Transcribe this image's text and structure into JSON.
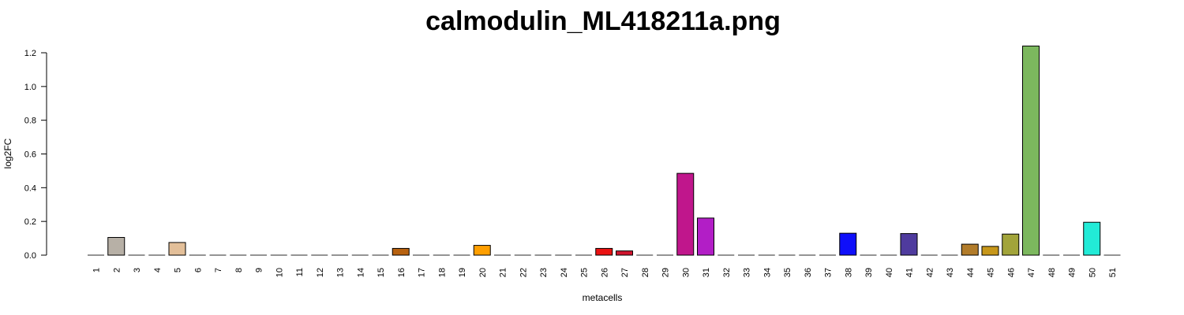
{
  "chart_data": {
    "type": "bar",
    "title": "calmodulin_ML418211a.png",
    "xlabel": "metacells",
    "ylabel": "log2FC",
    "ylim": [
      0,
      1.2
    ],
    "yticks": [
      "0.0",
      "0.2",
      "0.4",
      "0.6",
      "0.8",
      "1.0",
      "1.2"
    ],
    "grid": false,
    "legend": "none",
    "categories": [
      "1",
      "2",
      "3",
      "4",
      "5",
      "6",
      "7",
      "8",
      "9",
      "10",
      "11",
      "12",
      "13",
      "14",
      "15",
      "16",
      "17",
      "18",
      "19",
      "20",
      "21",
      "22",
      "23",
      "24",
      "25",
      "26",
      "27",
      "28",
      "29",
      "30",
      "31",
      "32",
      "33",
      "34",
      "35",
      "36",
      "37",
      "38",
      "39",
      "40",
      "41",
      "42",
      "43",
      "44",
      "45",
      "46",
      "47",
      "48",
      "49",
      "50",
      "51"
    ],
    "values": [
      0,
      0.105,
      0,
      0,
      0.075,
      0,
      0,
      0,
      0,
      0,
      0,
      0,
      0,
      0,
      0,
      0.04,
      0,
      0,
      0,
      0.058,
      0,
      0,
      0,
      0,
      0,
      0.04,
      0.025,
      0,
      0,
      0.485,
      0.22,
      0,
      0,
      0,
      0,
      0,
      0,
      0.13,
      0,
      0,
      0.128,
      0,
      0,
      0.065,
      0.052,
      0.125,
      1.24,
      0,
      0,
      0.195,
      0
    ],
    "colors": [
      "#b0d3e6",
      "#b7b0a6",
      "#cfcfcf",
      "#d7d7d7",
      "#e3bf99",
      "#9aa0ff",
      "#ffdca0",
      "#a8d4a8",
      "#f3b7c2",
      "#c9b6e3",
      "#b5d9d0",
      "#e0c9a6",
      "#c8c8ff",
      "#ffd0b0",
      "#cfe6a8",
      "#b7610f",
      "#f2c5d5",
      "#bde0ff",
      "#e6e6b3",
      "#ff9f00",
      "#c5e3c5",
      "#d9c2e6",
      "#ffcfcf",
      "#c2d6e6",
      "#e6d5b8",
      "#ea1212",
      "#d0142e",
      "#c9e0c9",
      "#e3c9d9",
      "#c0168c",
      "#b21ec6",
      "#d2d2f5",
      "#f5d2d2",
      "#d2f5e1",
      "#e8e1c8",
      "#c8dfe8",
      "#e1c8e8",
      "#0f0ffa",
      "#d9e8c8",
      "#e8c8c8",
      "#4f3b9e",
      "#c8e8e8",
      "#e8e8c8",
      "#b27c2a",
      "#c7971a",
      "#a2a43a",
      "#7cb85e",
      "#c8d0e8",
      "#e0d8c8",
      "#22ebd7",
      "#d8c8e0"
    ]
  }
}
